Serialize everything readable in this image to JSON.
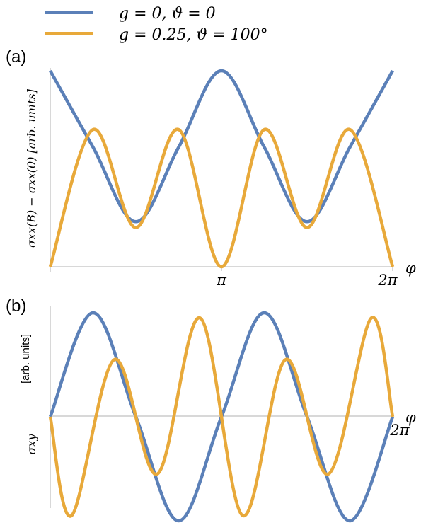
{
  "legend": {
    "entries": [
      {
        "label": "g = 0, ϑ = 0",
        "color": "#5B80B8"
      },
      {
        "label": "g = 0.25, ϑ = 100°",
        "color": "#E8A93A"
      }
    ]
  },
  "panels": {
    "a": {
      "label": "(a)",
      "ylabel": "σxx(B) − σxx(0) [arb. units]",
      "xlabel": "φ",
      "xticks": [
        "π",
        "2π"
      ]
    },
    "b": {
      "label": "(b)",
      "ylabel_unit": "[arb. units]",
      "ylabel_sym": "σxy",
      "xlabel": "φ",
      "xticks": [
        "2π"
      ]
    }
  },
  "colors": {
    "series1": "#5B80B8",
    "series2": "#E8A93A",
    "axis": "#b0b0b0"
  },
  "chart_data": [
    {
      "type": "line",
      "panel": "a",
      "x_range": [
        0,
        6.2832
      ],
      "y_range": [
        0,
        1
      ],
      "series": [
        {
          "name": "g = 0, ϑ = 0",
          "x": [
            0,
            0.785,
            1.571,
            2.356,
            3.142,
            3.927,
            4.712,
            5.498,
            6.283
          ],
          "y": [
            1.0,
            0.61,
            0.23,
            0.61,
            1.0,
            0.61,
            0.23,
            0.61,
            1.0
          ]
        },
        {
          "name": "g = 0.25, ϑ = 100°",
          "x": [
            0,
            0.785,
            1.571,
            2.356,
            3.142,
            3.927,
            4.712,
            5.498,
            6.283
          ],
          "y": [
            0.0,
            0.7,
            0.2,
            0.7,
            0.0,
            0.7,
            0.2,
            0.7,
            0.0
          ]
        }
      ]
    },
    {
      "type": "line",
      "panel": "b",
      "x_range": [
        0,
        6.2832
      ],
      "y_range": [
        -1,
        1
      ],
      "series": [
        {
          "name": "g = 0, ϑ = 0",
          "x": [
            0,
            0.785,
            1.571,
            2.356,
            3.142,
            3.927,
            4.712,
            5.498,
            6.283
          ],
          "y": [
            0,
            1.0,
            0,
            -1.0,
            0,
            1.0,
            0,
            -1.0,
            0
          ]
        },
        {
          "name": "g = 0.25, ϑ = 100°",
          "x": [
            0,
            0.393,
            1.178,
            1.963,
            2.749,
            3.534,
            4.32,
            5.105,
            5.89,
            6.283
          ],
          "y": [
            0,
            -0.95,
            0.55,
            -0.55,
            0.95,
            -0.95,
            0.55,
            -0.55,
            0.95,
            0
          ]
        }
      ]
    }
  ]
}
